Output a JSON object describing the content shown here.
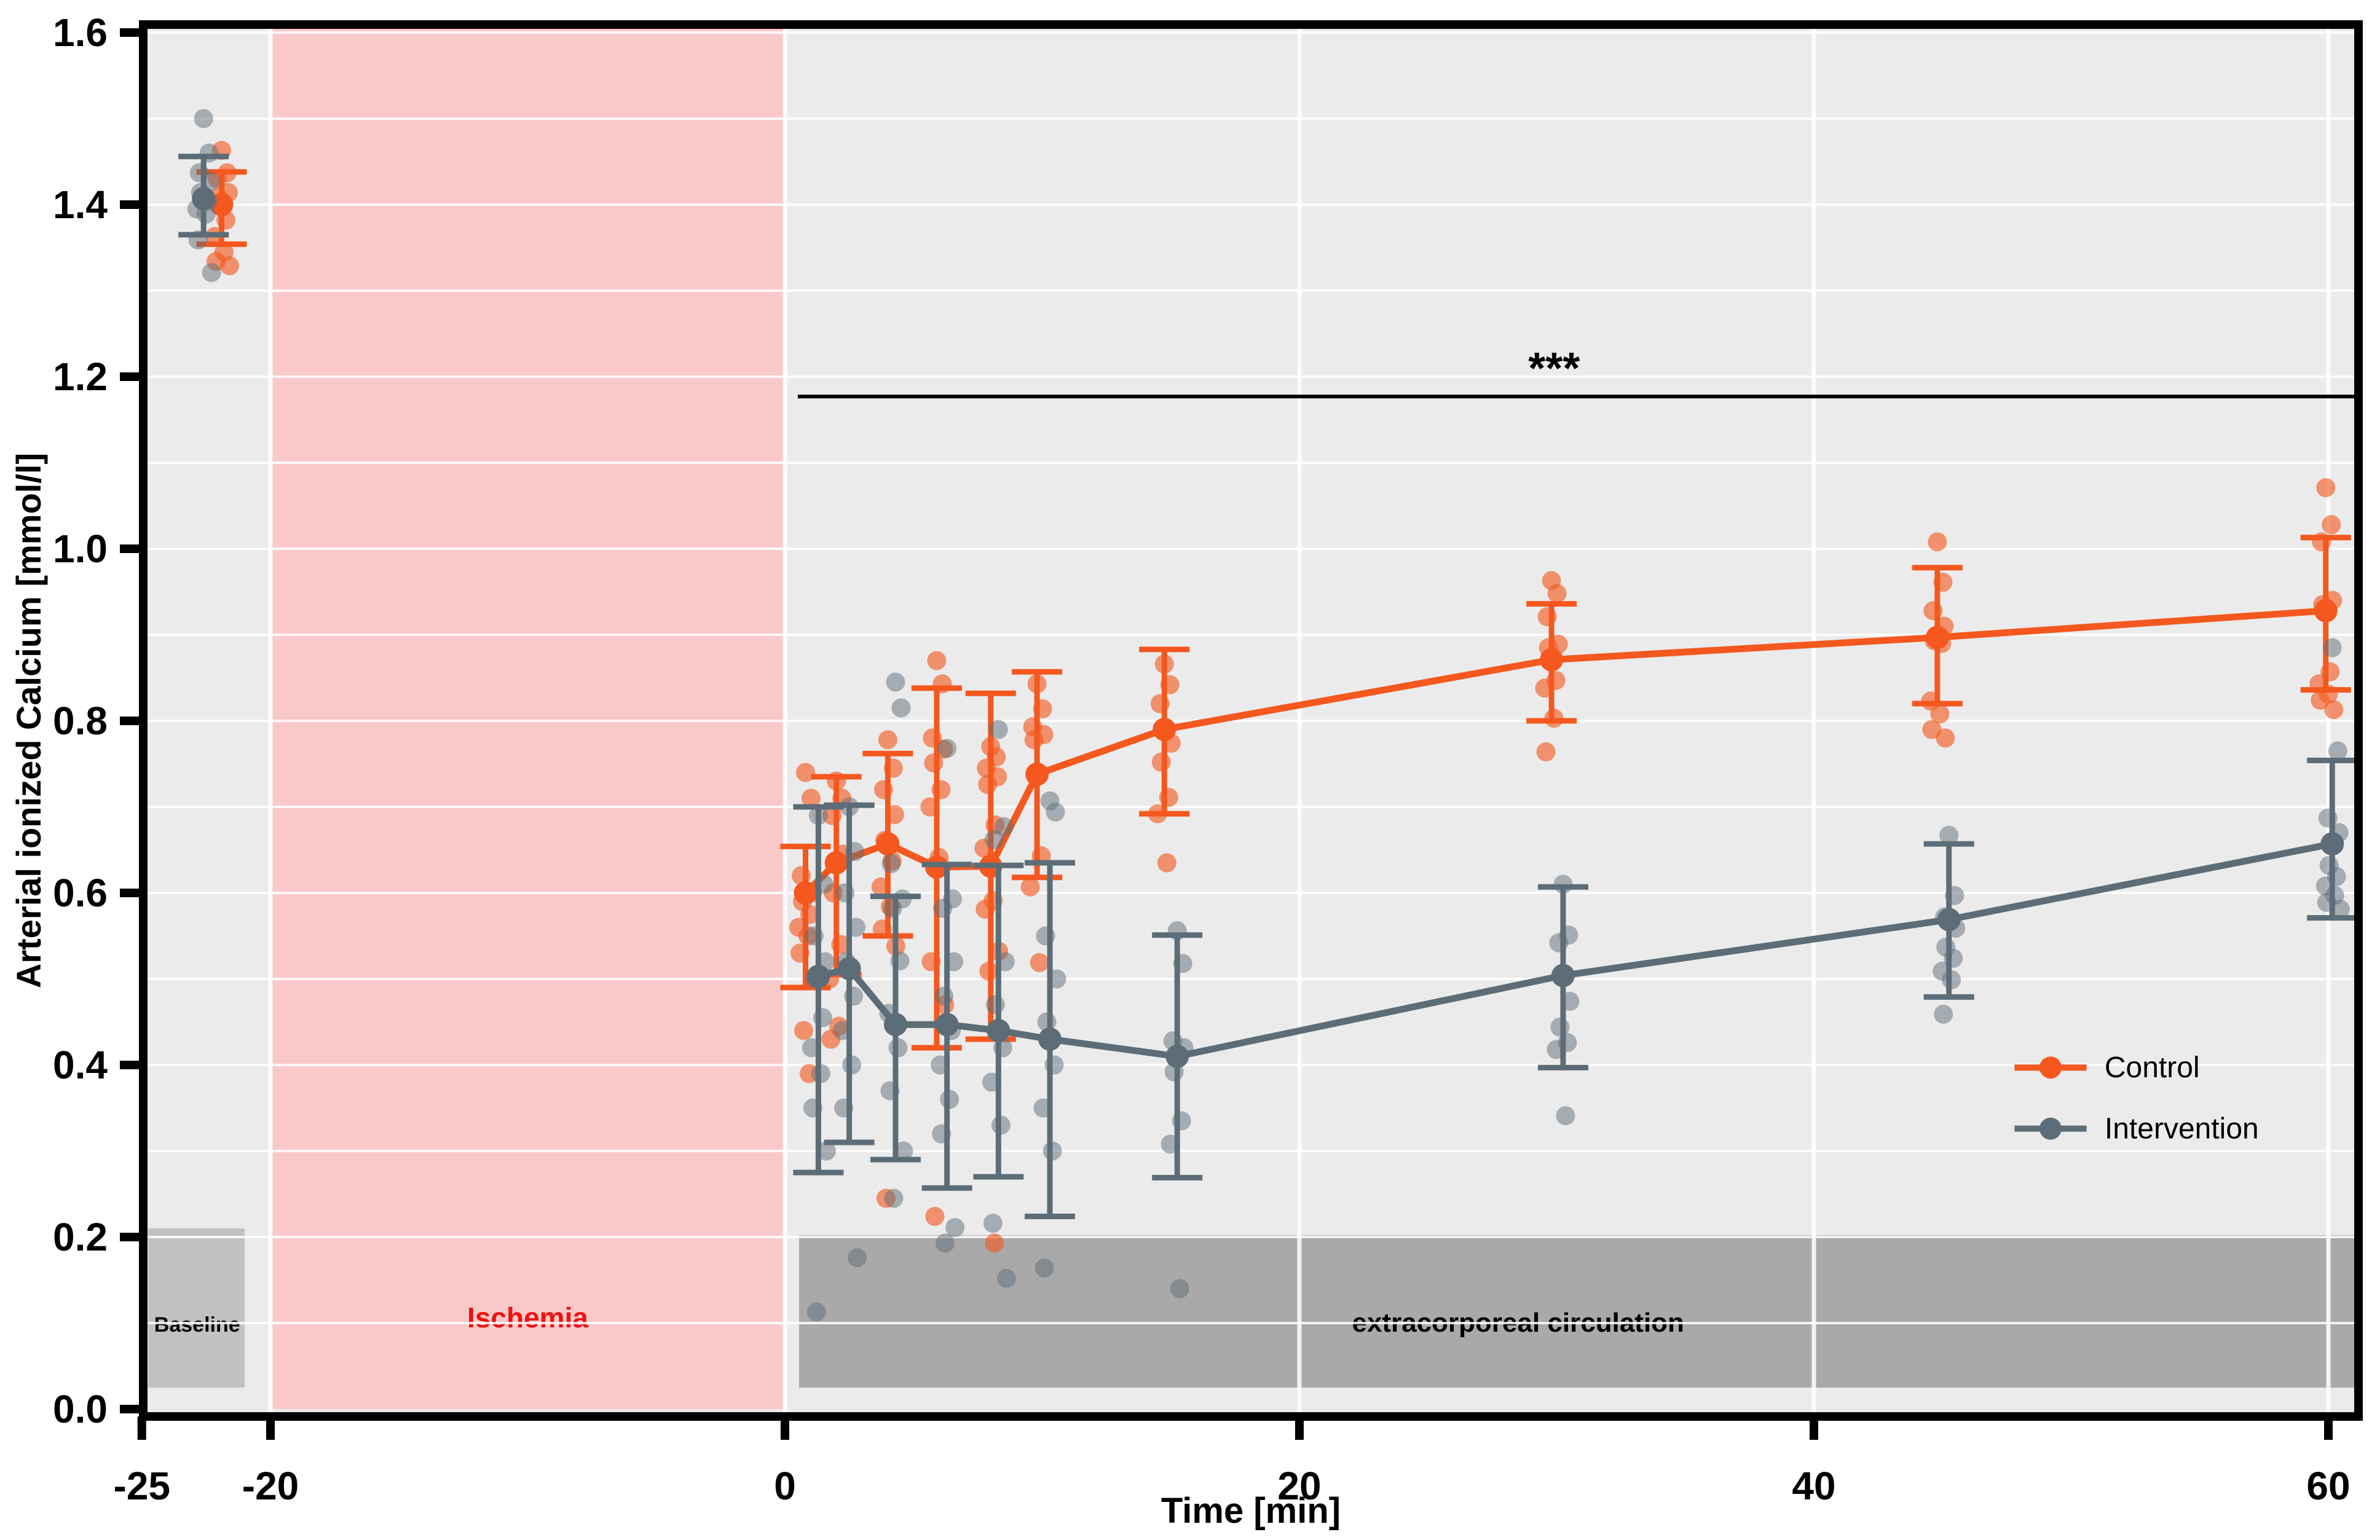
{
  "chart_data": {
    "type": "scatter",
    "title": "",
    "xlabel": "Time [min]",
    "ylabel": "Arterial ionized Calcium [mmol/l]",
    "xlim": [
      -25.5,
      61.3
    ],
    "ylim": [
      0,
      1.605
    ],
    "grid": "on",
    "legend_position": "lower right",
    "xticks": [
      -25,
      -20,
      0,
      20,
      40,
      60
    ],
    "xtick_labels": [
      "-25",
      "-20",
      "0",
      "20",
      "40",
      "60"
    ],
    "yticks": [
      0.0,
      0.2,
      0.4,
      0.6,
      0.8,
      1.0,
      1.2,
      1.4,
      1.6
    ],
    "ytick_labels": [
      "0.0",
      "0.2",
      "0.4",
      "0.6",
      "0.8",
      "1.0",
      "1.2",
      "1.4",
      "1.6"
    ],
    "minor_grid_step": 0.1,
    "background_color": "#EBEBEB",
    "gridline_color": "#FFFFFF",
    "regions": [
      {
        "id": "ischemia",
        "label": "Ischemia",
        "x_from": -20,
        "x_to": 0,
        "y_from": 0,
        "y_to": 1.605,
        "color": "#F9C9C9",
        "label_color": "#EE1111",
        "label_x": -10,
        "label_y": 0.095,
        "label_size": 46
      },
      {
        "id": "baseline",
        "label": "Baseline",
        "x_from": -24.75,
        "x_to": -21.0,
        "y_from": 0.025,
        "y_to": 0.21,
        "color": "#C2C1C1",
        "label_color": "#000000",
        "label_x": -22.85,
        "label_y": 0.09,
        "label_size": 34
      },
      {
        "id": "ecc",
        "label": "extracorporeal circulation",
        "x_from": 0.55,
        "x_to": 61.2,
        "y_from": 0.025,
        "y_to": 0.202,
        "color": "#A9A9A9",
        "label_color": "#000000",
        "label_x": 28.5,
        "label_y": 0.09,
        "label_size": 44
      }
    ],
    "significance": {
      "stars": "***",
      "line_y": 1.177,
      "x_from": 0.5,
      "x_to": 61.0,
      "stars_x": 29.9,
      "stars_y": 1.192,
      "color": "#000000"
    },
    "series": [
      {
        "name": "Control",
        "color": "#F4581E",
        "point_opacity": 0.62,
        "times": [
          -21.9,
          0.8,
          2.0,
          4.0,
          5.9,
          8.0,
          9.8,
          14.75,
          29.8,
          44.8,
          59.9
        ],
        "means": [
          1.4,
          0.6,
          0.635,
          0.657,
          0.63,
          0.631,
          0.738,
          0.79,
          0.871,
          0.897,
          0.928
        ],
        "ci_low": [
          1.354,
          0.49,
          0.505,
          0.55,
          0.42,
          0.43,
          0.618,
          0.692,
          0.8,
          0.82,
          0.836
        ],
        "ci_high": [
          1.438,
          0.654,
          0.735,
          0.762,
          0.838,
          0.832,
          0.857,
          0.883,
          0.936,
          0.978,
          1.013
        ],
        "points": [
          [
            1.463,
            1.437,
            1.43,
            1.414,
            1.408,
            1.382,
            1.363,
            1.345,
            1.334,
            1.329
          ],
          [
            0.74,
            0.71,
            0.62,
            0.6,
            0.59,
            0.575,
            0.56,
            0.55,
            0.53,
            0.5,
            0.44,
            0.39
          ],
          [
            0.73,
            0.71,
            0.69,
            0.645,
            0.6,
            0.54,
            0.5,
            0.445,
            0.43
          ],
          [
            0.778,
            0.745,
            0.72,
            0.691,
            0.661,
            0.637,
            0.607,
            0.584,
            0.558,
            0.538,
            0.245
          ],
          [
            0.87,
            0.843,
            0.78,
            0.767,
            0.751,
            0.72,
            0.7,
            0.641,
            0.52,
            0.47,
            0.224
          ],
          [
            0.77,
            0.758,
            0.745,
            0.735,
            0.726,
            0.679,
            0.652,
            0.591,
            0.581,
            0.532,
            0.509,
            0.193
          ],
          [
            0.843,
            0.814,
            0.793,
            0.784,
            0.778,
            0.643,
            0.607,
            0.519
          ],
          [
            0.866,
            0.842,
            0.82,
            0.774,
            0.752,
            0.711,
            0.692,
            0.635
          ],
          [
            0.963,
            0.948,
            0.921,
            0.889,
            0.885,
            0.847,
            0.838,
            0.803,
            0.764
          ],
          [
            1.008,
            0.961,
            0.928,
            0.91,
            0.893,
            0.89,
            0.823,
            0.808,
            0.79,
            0.78
          ],
          [
            1.071,
            1.028,
            1.008,
            0.94,
            0.935,
            0.857,
            0.843,
            0.831,
            0.824,
            0.813
          ]
        ]
      },
      {
        "name": "Intervention",
        "color": "#5D6D77",
        "point_opacity": 0.5,
        "times": [
          -22.6,
          1.3,
          2.5,
          4.3,
          6.3,
          8.3,
          10.3,
          15.25,
          30.25,
          45.25,
          60.15
        ],
        "means": [
          1.407,
          0.503,
          0.512,
          0.447,
          0.447,
          0.44,
          0.43,
          0.41,
          0.504,
          0.569,
          0.657
        ],
        "ci_low": [
          1.365,
          0.275,
          0.31,
          0.29,
          0.257,
          0.27,
          0.224,
          0.269,
          0.397,
          0.479,
          0.571
        ],
        "ci_high": [
          1.456,
          0.7,
          0.702,
          0.596,
          0.633,
          0.632,
          0.635,
          0.551,
          0.607,
          0.657,
          0.754
        ],
        "points": [
          [
            1.5,
            1.46,
            1.437,
            1.427,
            1.414,
            1.404,
            1.395,
            1.389,
            1.359,
            1.321
          ],
          [
            0.69,
            0.61,
            0.55,
            0.52,
            0.5,
            0.455,
            0.42,
            0.39,
            0.35,
            0.3,
            0.113
          ],
          [
            0.7,
            0.648,
            0.6,
            0.56,
            0.52,
            0.48,
            0.44,
            0.4,
            0.35,
            0.176
          ],
          [
            0.845,
            0.815,
            0.634,
            0.593,
            0.582,
            0.521,
            0.46,
            0.42,
            0.37,
            0.3,
            0.245
          ],
          [
            0.768,
            0.593,
            0.582,
            0.52,
            0.48,
            0.44,
            0.4,
            0.36,
            0.32,
            0.211,
            0.193
          ],
          [
            0.79,
            0.677,
            0.662,
            0.52,
            0.47,
            0.42,
            0.38,
            0.33,
            0.216,
            0.152
          ],
          [
            0.707,
            0.694,
            0.55,
            0.5,
            0.45,
            0.4,
            0.35,
            0.3,
            0.164
          ],
          [
            0.556,
            0.518,
            0.428,
            0.42,
            0.392,
            0.335,
            0.308,
            0.14
          ],
          [
            0.61,
            0.551,
            0.542,
            0.474,
            0.444,
            0.426,
            0.418,
            0.341
          ],
          [
            0.667,
            0.597,
            0.572,
            0.559,
            0.537,
            0.524,
            0.509,
            0.499,
            0.459
          ],
          [
            0.885,
            0.765,
            0.687,
            0.67,
            0.632,
            0.619,
            0.608,
            0.597,
            0.589,
            0.581
          ]
        ]
      }
    ],
    "legend": {
      "marker_x_from": 47.8,
      "marker_x_to": 50.6,
      "label_x": 51.3,
      "entries": [
        {
          "label": "Control",
          "y": 0.397
        },
        {
          "label": "Intervention",
          "y": 0.326
        }
      ]
    }
  }
}
